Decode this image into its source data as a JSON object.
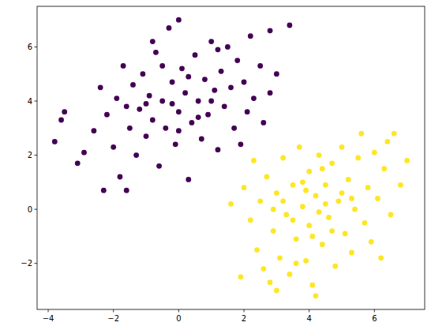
{
  "chart_data": {
    "type": "scatter",
    "marker": "circle",
    "xlim": [
      -4.34,
      7.54
    ],
    "ylim": [
      -3.7,
      7.5
    ],
    "xticks": [
      -4,
      -2,
      0,
      2,
      4,
      6
    ],
    "yticks": [
      -2,
      0,
      2,
      4,
      6
    ],
    "series": [
      {
        "color": "#440154",
        "x": [
          -3.8,
          -3.6,
          -3.5,
          -3.1,
          -2.3,
          -1.6,
          -2.9,
          -2.6,
          -2.4,
          -2.2,
          -2.0,
          -1.9,
          -1.8,
          -1.7,
          -1.5,
          -1.4,
          -1.3,
          -1.2,
          -1.1,
          -1.0,
          -0.9,
          -0.8,
          -0.7,
          -0.6,
          -0.5,
          -0.4,
          -0.3,
          -0.2,
          -0.1,
          0.0,
          0.0,
          0.1,
          0.2,
          0.3,
          0.4,
          0.5,
          0.6,
          0.7,
          0.8,
          0.9,
          1.0,
          1.1,
          1.2,
          1.3,
          1.4,
          1.5,
          1.6,
          1.7,
          1.8,
          1.9,
          2.0,
          2.1,
          2.2,
          2.3,
          2.5,
          2.6,
          2.8,
          2.8,
          3.0,
          3.4,
          -0.5,
          0.3,
          -1.0,
          0.6,
          -0.2,
          1.0,
          -1.6,
          0.0,
          -0.8,
          1.2
        ],
        "values": [
          2.5,
          3.3,
          3.6,
          1.7,
          0.7,
          0.7,
          2.1,
          2.9,
          4.5,
          3.5,
          2.3,
          4.1,
          1.2,
          5.3,
          3.0,
          4.6,
          2.0,
          3.7,
          5.0,
          2.7,
          4.2,
          3.3,
          5.8,
          1.6,
          4.0,
          3.0,
          6.7,
          4.7,
          2.4,
          7.0,
          3.6,
          5.2,
          4.3,
          1.1,
          3.2,
          5.7,
          4.0,
          2.6,
          4.8,
          3.5,
          6.2,
          4.4,
          2.2,
          5.1,
          3.8,
          6.0,
          4.5,
          3.0,
          5.5,
          2.4,
          4.7,
          3.6,
          6.4,
          4.1,
          5.3,
          3.2,
          6.6,
          4.3,
          5.0,
          6.8,
          5.3,
          4.9,
          3.9,
          3.4,
          3.9,
          4.0,
          3.8,
          2.9,
          6.2,
          5.9
        ]
      },
      {
        "color": "#fde725",
        "x": [
          1.6,
          2.0,
          2.3,
          1.9,
          2.2,
          2.4,
          2.5,
          2.6,
          2.8,
          2.7,
          2.9,
          3.0,
          3.0,
          3.1,
          3.2,
          3.3,
          3.4,
          3.5,
          3.6,
          3.7,
          3.8,
          3.9,
          4.0,
          4.0,
          4.1,
          4.2,
          4.2,
          4.3,
          4.4,
          4.5,
          4.6,
          4.7,
          4.8,
          4.9,
          5.0,
          5.1,
          5.2,
          5.3,
          5.4,
          5.5,
          5.6,
          5.7,
          5.8,
          5.9,
          6.0,
          6.2,
          6.1,
          6.3,
          6.4,
          6.6,
          6.5,
          6.8,
          7.0,
          3.5,
          4.5,
          3.9,
          4.3,
          5.0,
          3.2,
          4.7,
          3.8,
          4.1,
          5.3,
          2.9,
          4.4,
          3.6
        ],
        "values": [
          0.2,
          0.8,
          1.8,
          -2.5,
          -0.4,
          -1.5,
          0.3,
          -2.2,
          -2.7,
          1.2,
          -0.8,
          -3.0,
          0.6,
          -1.8,
          1.9,
          -0.2,
          -2.4,
          0.9,
          -1.1,
          2.3,
          0.1,
          -1.9,
          1.4,
          -0.6,
          -2.8,
          -3.2,
          0.5,
          2.0,
          -1.3,
          0.9,
          -0.3,
          1.7,
          -2.1,
          0.3,
          2.3,
          -0.9,
          1.1,
          -1.6,
          0.0,
          1.9,
          2.8,
          -0.5,
          0.8,
          -1.2,
          2.1,
          -1.8,
          0.4,
          1.5,
          2.5,
          2.8,
          -0.2,
          0.9,
          1.8,
          -0.4,
          0.2,
          0.7,
          -0.1,
          0.6,
          0.3,
          -0.8,
          1.0,
          -1.0,
          0.4,
          0.0,
          1.5,
          -2.0
        ]
      }
    ]
  }
}
